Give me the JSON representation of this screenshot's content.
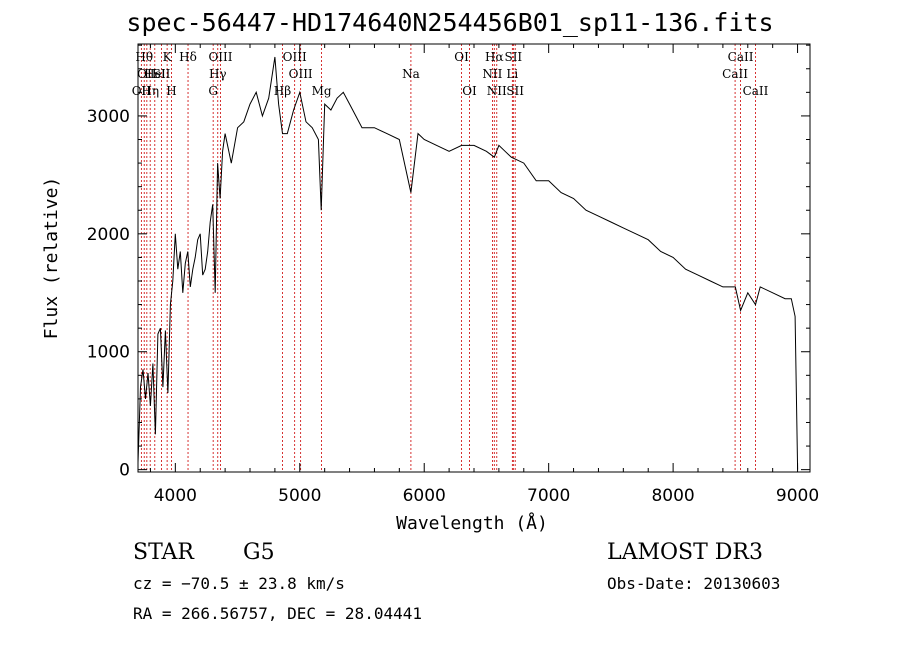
{
  "chart_data": {
    "type": "line",
    "title": "spec-56447-HD174640N254456B01_sp11-136.fits",
    "xlabel": "Wavelength (Å)",
    "ylabel": "Flux (relative)",
    "xlim": [
      3700,
      9100
    ],
    "ylim": [
      -20,
      3610
    ],
    "xticks": [
      4000,
      5000,
      6000,
      7000,
      8000,
      9000
    ],
    "yticks": [
      0,
      1000,
      2000,
      3000
    ],
    "grid": false,
    "line_color": "#000000",
    "marker_line_color": "#cc0000",
    "spectrum": {
      "x": [
        3700,
        3720,
        3740,
        3760,
        3780,
        3800,
        3820,
        3840,
        3860,
        3880,
        3900,
        3920,
        3940,
        3960,
        3980,
        4000,
        4020,
        4040,
        4060,
        4080,
        4100,
        4120,
        4140,
        4160,
        4180,
        4200,
        4220,
        4240,
        4260,
        4280,
        4300,
        4320,
        4340,
        4360,
        4380,
        4400,
        4450,
        4500,
        4550,
        4600,
        4650,
        4700,
        4750,
        4800,
        4830,
        4861,
        4900,
        4950,
        5000,
        5050,
        5100,
        5150,
        5172,
        5200,
        5250,
        5300,
        5350,
        5400,
        5450,
        5500,
        5600,
        5700,
        5800,
        5893,
        5950,
        6000,
        6100,
        6200,
        6300,
        6400,
        6500,
        6563,
        6600,
        6650,
        6700,
        6800,
        6900,
        7000,
        7100,
        7200,
        7300,
        7400,
        7500,
        7600,
        7700,
        7800,
        7900,
        8000,
        8100,
        8200,
        8300,
        8400,
        8500,
        8542,
        8600,
        8662,
        8700,
        8800,
        8900,
        8950,
        8980,
        9000
      ],
      "y": [
        60,
        700,
        850,
        600,
        820,
        540,
        900,
        300,
        1150,
        1200,
        700,
        1180,
        650,
        1400,
        1600,
        2000,
        1700,
        1850,
        1500,
        1750,
        1850,
        1550,
        1700,
        1800,
        1950,
        2000,
        1650,
        1700,
        1850,
        2100,
        2250,
        1500,
        2600,
        2300,
        2700,
        2850,
        2600,
        2900,
        2950,
        3100,
        3200,
        3000,
        3150,
        3500,
        3100,
        2850,
        2850,
        3050,
        3200,
        2950,
        2900,
        2800,
        2200,
        3100,
        3050,
        3150,
        3200,
        3100,
        3000,
        2900,
        2900,
        2850,
        2800,
        2350,
        2850,
        2800,
        2750,
        2700,
        2750,
        2750,
        2700,
        2650,
        2750,
        2700,
        2650,
        2600,
        2450,
        2450,
        2350,
        2300,
        2200,
        2150,
        2100,
        2050,
        2000,
        1950,
        1850,
        1800,
        1700,
        1650,
        1600,
        1550,
        1550,
        1350,
        1500,
        1400,
        1550,
        1500,
        1450,
        1450,
        1300,
        0
      ]
    },
    "spectral_lines": [
      {
        "x": 3727,
        "label": "OII",
        "row": 3
      },
      {
        "x": 3750,
        "label": "Hθ",
        "row": 1
      },
      {
        "x": 3771,
        "label": "OII",
        "row": 2
      },
      {
        "x": 3798,
        "label": "Hη",
        "row": 3
      },
      {
        "x": 3835,
        "label": "Hel",
        "row": 2
      },
      {
        "x": 3889,
        "label": "SII",
        "row": 2
      },
      {
        "x": 3934,
        "label": "K",
        "row": 1
      },
      {
        "x": 3969,
        "label": "H",
        "row": 3
      },
      {
        "x": 4102,
        "label": "Hδ",
        "row": 1
      },
      {
        "x": 4304,
        "label": "G",
        "row": 3
      },
      {
        "x": 4341,
        "label": "Hγ",
        "row": 2
      },
      {
        "x": 4363,
        "label": "OIII",
        "row": 1
      },
      {
        "x": 4861,
        "label": "Hβ",
        "row": 3
      },
      {
        "x": 4959,
        "label": "OIII",
        "row": 1
      },
      {
        "x": 5007,
        "label": "OIII",
        "row": 2
      },
      {
        "x": 5175,
        "label": "Mg",
        "row": 3
      },
      {
        "x": 5893,
        "label": "Na",
        "row": 2
      },
      {
        "x": 6300,
        "label": "OI",
        "row": 1
      },
      {
        "x": 6364,
        "label": "OI",
        "row": 3
      },
      {
        "x": 6548,
        "label": "NII",
        "row": 2
      },
      {
        "x": 6563,
        "label": "Hα",
        "row": 1
      },
      {
        "x": 6583,
        "label": "NII",
        "row": 3
      },
      {
        "x": 6708,
        "label": "Li",
        "row": 2
      },
      {
        "x": 6716,
        "label": "SII",
        "row": 1
      },
      {
        "x": 6731,
        "label": "SII",
        "row": 3
      },
      {
        "x": 8498,
        "label": "CaII",
        "row": 2
      },
      {
        "x": 8542,
        "label": "CaII",
        "row": 1
      },
      {
        "x": 8662,
        "label": "CaII",
        "row": 3
      }
    ]
  },
  "info": {
    "class": "STAR",
    "subclass": "G5",
    "survey": "LAMOST DR3",
    "cz": "cz = −70.5 ± 23.8 km/s",
    "obs_date": "Obs-Date: 20130603",
    "radec": "RA = 266.56757, DEC =  28.04441"
  }
}
